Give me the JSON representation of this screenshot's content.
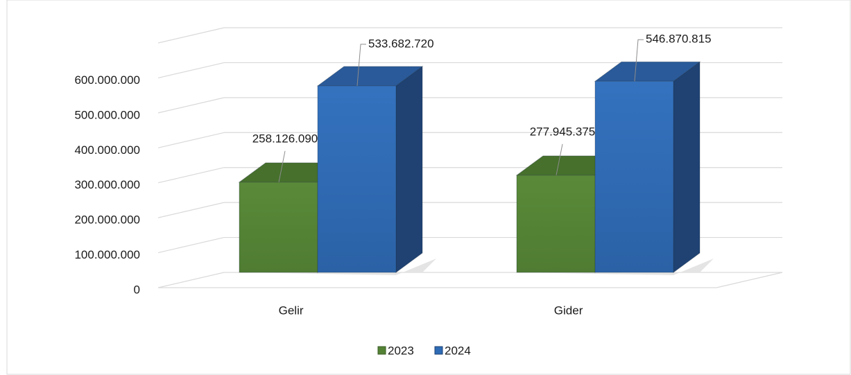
{
  "chart_data": {
    "type": "bar3d",
    "categories": [
      "Gelir",
      "Gider"
    ],
    "series": [
      {
        "name": "2023",
        "color": "#548235",
        "values": [
          258126090,
          277945375
        ],
        "value_labels": [
          "258.126.090",
          "277.945.375"
        ]
      },
      {
        "name": "2024",
        "color": "#2e6bb5",
        "values": [
          533682720,
          546870815
        ],
        "value_labels": [
          "533.682.720",
          "546.870.815"
        ]
      }
    ],
    "ylim": [
      0,
      700000000
    ],
    "yticks": [
      0,
      {
        "value": 100000000,
        "label": "100.000.000"
      },
      {
        "value": 200000000,
        "label": "200.000.000"
      },
      {
        "value": 300000000,
        "label": "300.000.000"
      },
      {
        "value": 400000000,
        "label": "400.000.000"
      },
      {
        "value": 500000000,
        "label": "500.000.000"
      },
      {
        "value": 600000000,
        "label": "600.000.000"
      }
    ],
    "grid": true,
    "legend": "bottom"
  }
}
